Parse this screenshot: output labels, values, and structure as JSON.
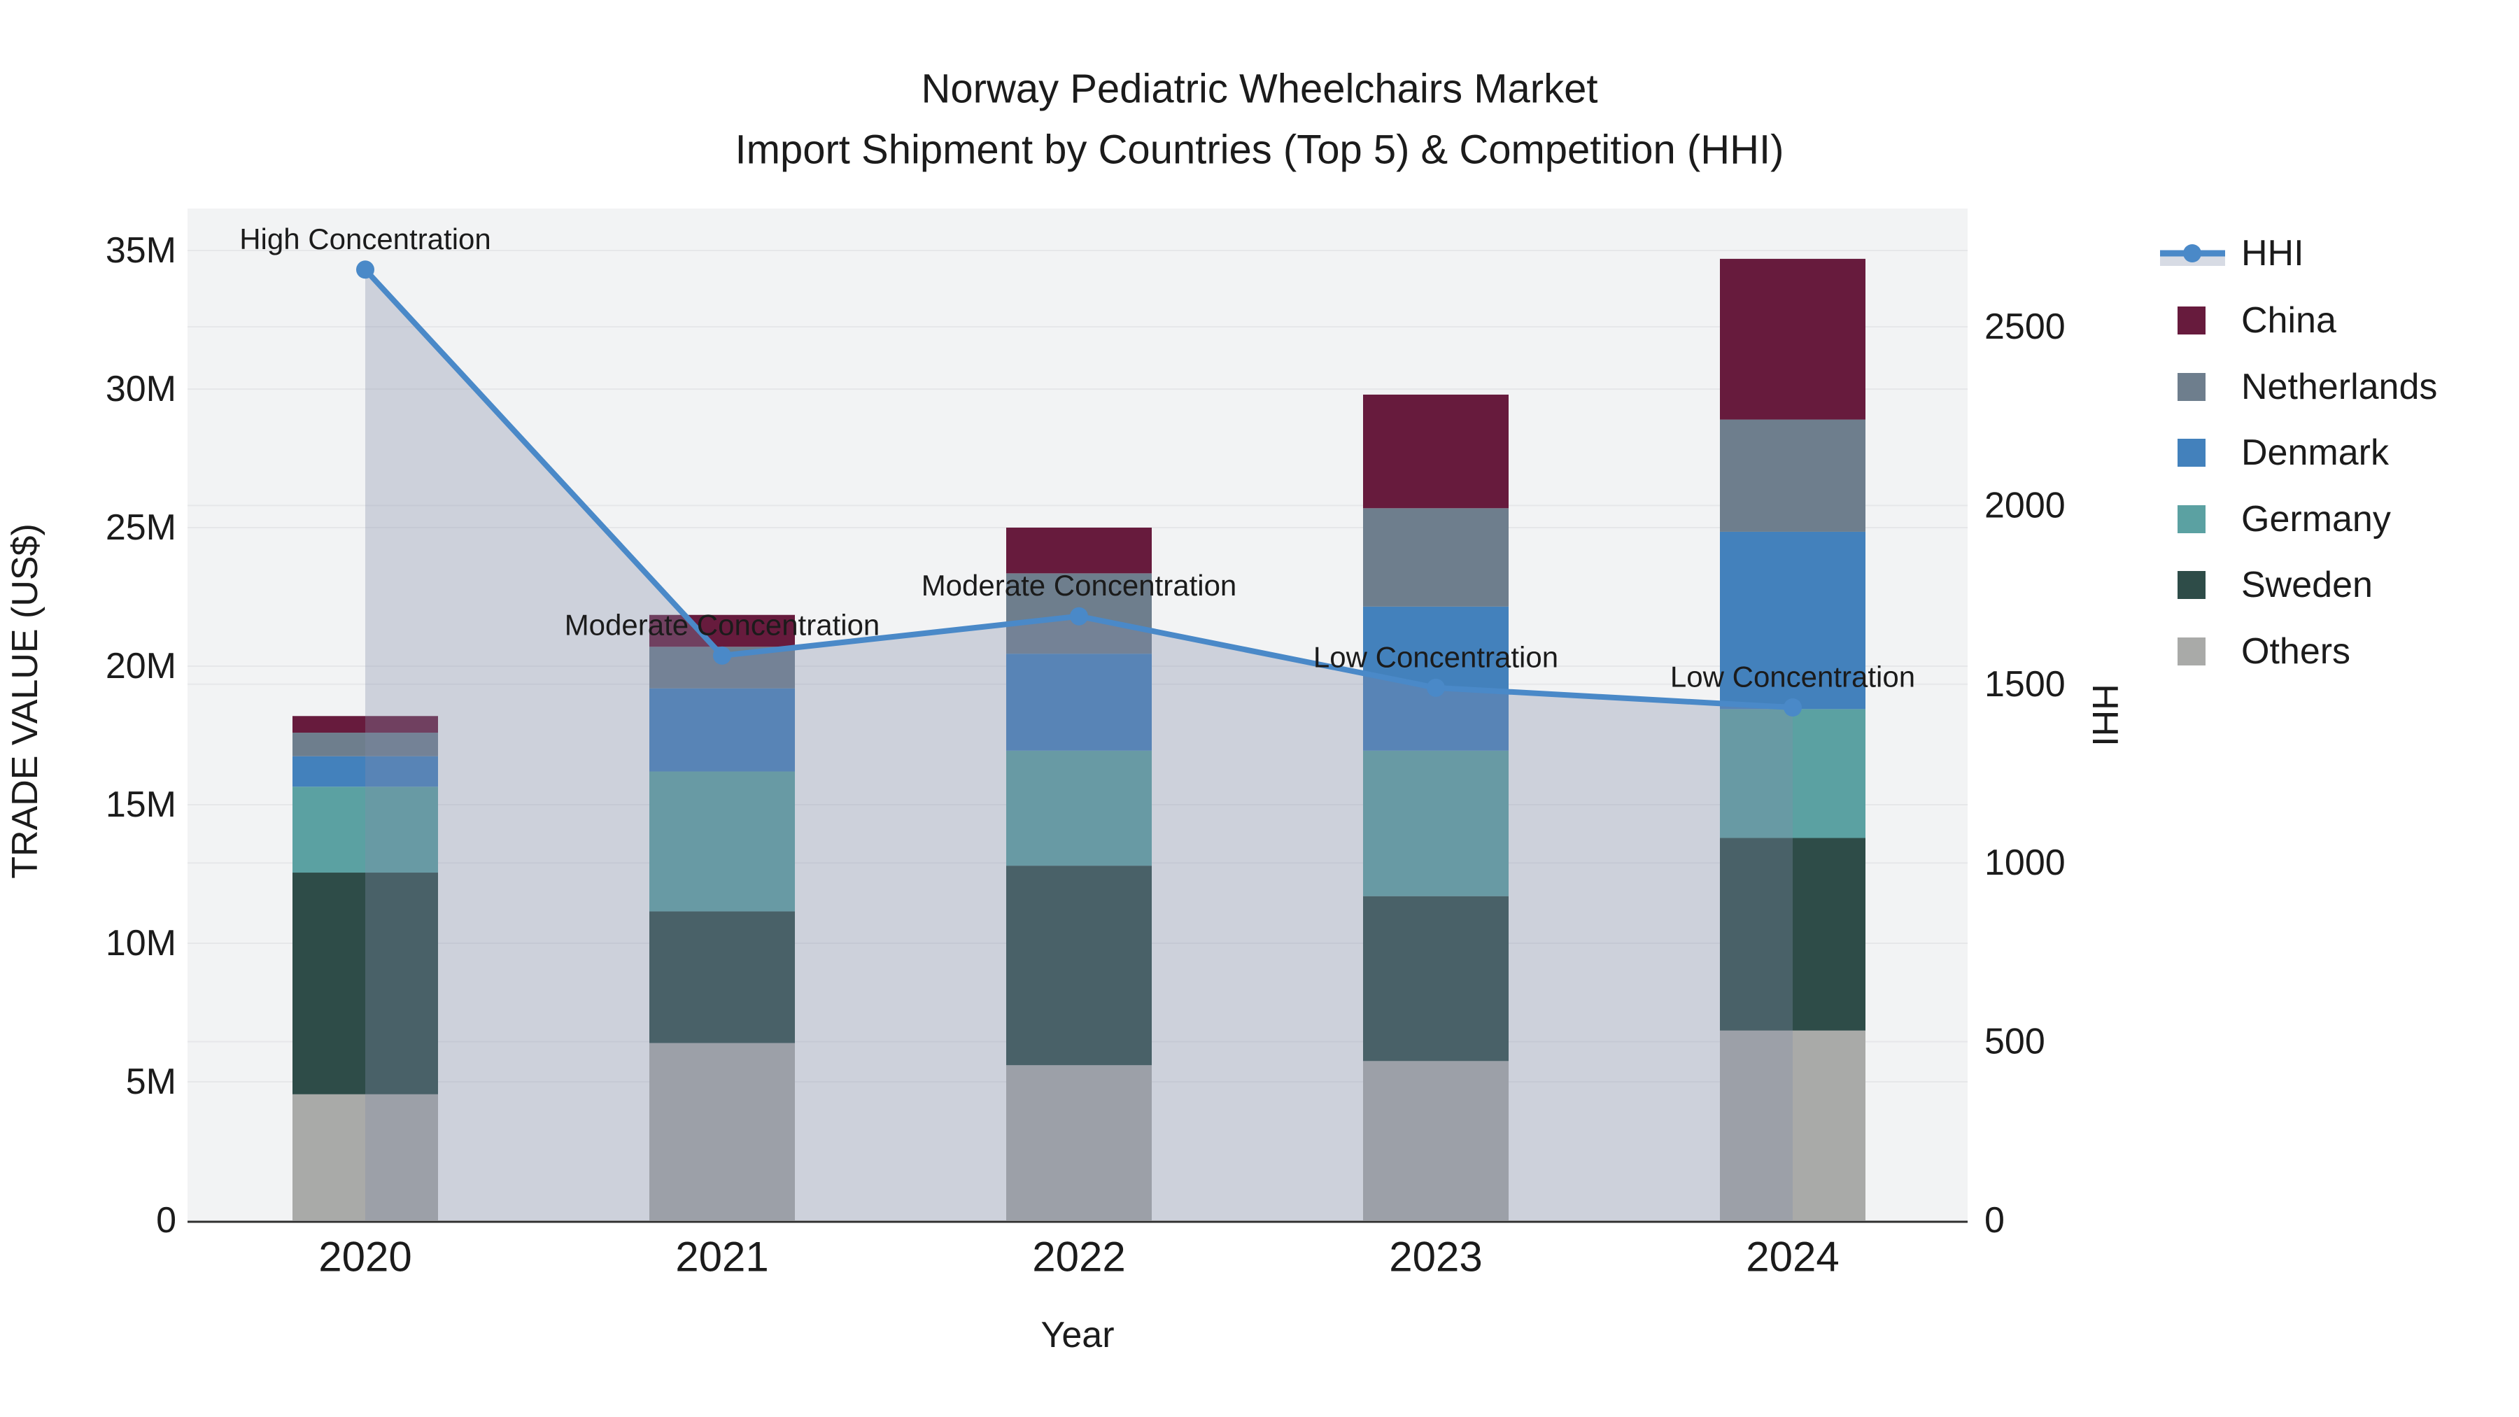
{
  "title": {
    "line1": "Norway Pediatric Wheelchairs Market",
    "line2": "Import Shipment by Countries (Top 5) & Competition (HHI)"
  },
  "legend": {
    "position": "right",
    "items": [
      {
        "label": "HHI",
        "type": "line-with-marker-and-band",
        "color": "#4A89C8",
        "band_color": "#D7DBE4"
      },
      {
        "label": "China",
        "type": "square",
        "color": "#671B3D"
      },
      {
        "label": "Netherlands",
        "type": "square",
        "color": "#6E7E8D"
      },
      {
        "label": "Denmark",
        "type": "square",
        "color": "#4381BC"
      },
      {
        "label": "Germany",
        "type": "square",
        "color": "#5BA1A2"
      },
      {
        "label": "Sweden",
        "type": "square",
        "color": "#2E4C48"
      },
      {
        "label": "Others",
        "type": "square",
        "color": "#A9AAA8"
      }
    ]
  },
  "chart_data": {
    "type": "bar",
    "subtype": "stacked bars (left axis, M US$) + HHI line with translucent area fill (right axis)",
    "categories": [
      "2020",
      "2021",
      "2022",
      "2023",
      "2024"
    ],
    "bar_value_unit": "million US$",
    "series": [
      {
        "name": "China",
        "color": "#671B3D",
        "values": [
          0.6,
          1.15,
          1.65,
          4.1,
          5.8
        ]
      },
      {
        "name": "Netherlands",
        "color": "#6E7E8D",
        "values": [
          0.85,
          1.5,
          2.9,
          3.55,
          4.05
        ]
      },
      {
        "name": "Denmark",
        "color": "#4381BC",
        "values": [
          1.1,
          3.0,
          3.5,
          5.2,
          6.4
        ]
      },
      {
        "name": "Germany",
        "color": "#5BA1A2",
        "values": [
          3.1,
          5.05,
          4.15,
          5.25,
          4.65
        ]
      },
      {
        "name": "Sweden",
        "color": "#2E4C48",
        "values": [
          8.0,
          4.75,
          7.2,
          5.95,
          6.95
        ]
      },
      {
        "name": "Others",
        "color": "#A9AAA8",
        "values": [
          4.55,
          6.4,
          5.6,
          5.75,
          6.85
        ]
      }
    ],
    "stack_order_bottom_to_top": [
      "Others",
      "Sweden",
      "Germany",
      "Denmark",
      "Netherlands",
      "China"
    ],
    "stack_totals": [
      18.2,
      21.85,
      25.0,
      29.8,
      34.7
    ],
    "line_series": {
      "name": "HHI",
      "axis": "right",
      "color": "#4A89C8",
      "fill_color": "rgba(130,140,170,0.33)",
      "values": [
        2660,
        1580,
        1690,
        1490,
        1435
      ]
    },
    "annotations": [
      {
        "text": "High Concentration",
        "x": "2020"
      },
      {
        "text": "Moderate Concentration",
        "x": "2021"
      },
      {
        "text": "Moderate Concentration",
        "x": "2022"
      },
      {
        "text": "Low Concentration",
        "x": "2023"
      },
      {
        "text": "Low Concentration",
        "x": "2024"
      }
    ],
    "x": {
      "label": "Year"
    },
    "y_left": {
      "label": "TRADE VALUE (US$)",
      "tick_labels": [
        "0",
        "5M",
        "10M",
        "15M",
        "20M",
        "25M",
        "30M",
        "35M"
      ],
      "tick_values": [
        0,
        5,
        10,
        15,
        20,
        25,
        30,
        35
      ],
      "range": [
        0,
        36.5
      ]
    },
    "y_right": {
      "label": "HHI",
      "tick_labels": [
        "0",
        "500",
        "1000",
        "1500",
        "2000",
        "2500"
      ],
      "tick_values": [
        0,
        500,
        1000,
        1500,
        2000,
        2500
      ],
      "range": [
        0,
        2830
      ]
    },
    "grid": true,
    "plot_background": "#F2F3F4",
    "grid_color": "#E6E7E9",
    "axis_line_color": "#2F2F2F"
  }
}
